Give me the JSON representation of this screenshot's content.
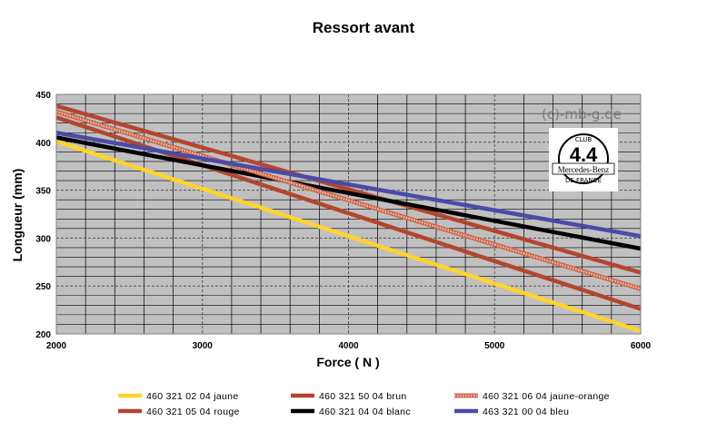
{
  "chart_data": {
    "type": "line",
    "title": "Ressort avant",
    "xlabel": "Force ( N )",
    "ylabel": "Longueur (mm)",
    "xlim": [
      2000,
      6000
    ],
    "ylim": [
      200,
      450
    ],
    "xticks": [
      2000,
      3000,
      4000,
      5000,
      6000
    ],
    "yticks": [
      200,
      250,
      300,
      350,
      400,
      450
    ],
    "grid": true,
    "legend_position": "bottom",
    "series": [
      {
        "name": "460 321 02 04  jaune",
        "color": "#ffd42a",
        "style": "solid",
        "x": [
          2000,
          6000
        ],
        "y": [
          401,
          203
        ]
      },
      {
        "name": "460 321 05 04  rouge",
        "color": "#b5452e",
        "style": "solid",
        "x": [
          2000,
          6000
        ],
        "y": [
          426,
          226
        ]
      },
      {
        "name": "460 321 50 04  brun",
        "color": "#b5452e",
        "style": "solid",
        "x": [
          2000,
          6000
        ],
        "y": [
          438,
          264
        ]
      },
      {
        "name": "460 321 04 04  blanc",
        "color": "#000000",
        "style": "solid",
        "x": [
          2000,
          6000
        ],
        "y": [
          405,
          289
        ]
      },
      {
        "name": "460 321 06 04  jaune-orange",
        "color": "#e89272",
        "style": "dotted",
        "x": [
          2000,
          6000
        ],
        "y": [
          432,
          247
        ]
      },
      {
        "name": "463 321 00 04  bleu",
        "color": "#4a4aa8",
        "style": "solid",
        "x": [
          2000,
          6000
        ],
        "y": [
          410,
          302
        ]
      }
    ],
    "annotations": {
      "watermark": "(c)-mb-g.de",
      "logo": {
        "top": "CLUB",
        "center": "4.4",
        "middle": "Mercedes-Benz",
        "bottom": "DE FRANCE"
      }
    }
  }
}
